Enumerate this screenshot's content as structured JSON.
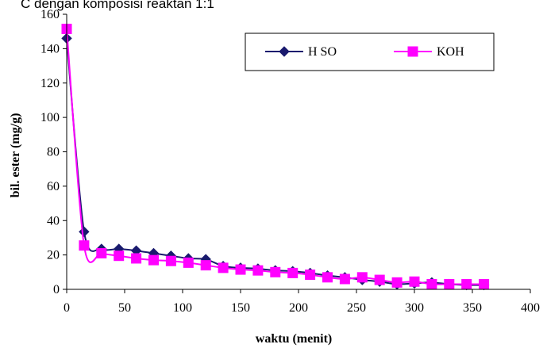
{
  "chart_data": {
    "type": "line",
    "caption": "C dengan komposisi reaktan 1:1",
    "xlabel": "waktu (menit)",
    "ylabel": "bil. ester (mg/g)",
    "xlim": [
      0,
      400
    ],
    "ylim": [
      0,
      160
    ],
    "xticks": [
      0,
      50,
      100,
      150,
      200,
      250,
      300,
      350,
      400
    ],
    "yticks": [
      0,
      20,
      40,
      60,
      80,
      100,
      120,
      140,
      160
    ],
    "grid": false,
    "legend_position": "top-right",
    "series": [
      {
        "name": "H SO",
        "color": "#1a1a6e",
        "marker": "diamond",
        "x": [
          0,
          15,
          30,
          45,
          60,
          75,
          90,
          105,
          120,
          135,
          150,
          165,
          180,
          195,
          210,
          225,
          240,
          255,
          270,
          285,
          300,
          315,
          330,
          345,
          360
        ],
        "y": [
          146,
          33.5,
          23.5,
          23.5,
          22.5,
          21,
          19.5,
          18,
          17.5,
          13.5,
          12.5,
          12,
          11,
          10.5,
          9.5,
          8,
          7,
          5.5,
          4.5,
          3,
          3.5,
          4,
          3,
          2.5,
          2.5
        ]
      },
      {
        "name": "KOH",
        "color": "#ff00ff",
        "marker": "square",
        "x": [
          0,
          15,
          30,
          45,
          60,
          75,
          90,
          105,
          120,
          135,
          150,
          165,
          180,
          195,
          210,
          225,
          240,
          255,
          270,
          285,
          300,
          315,
          330,
          345,
          360
        ],
        "y": [
          151.5,
          25.5,
          21,
          19.5,
          18,
          17,
          16.5,
          15.5,
          14,
          12.5,
          11.5,
          11,
          10,
          9.5,
          8.5,
          7,
          6,
          7,
          5.5,
          4,
          4.5,
          3,
          3,
          3,
          3
        ]
      }
    ]
  }
}
